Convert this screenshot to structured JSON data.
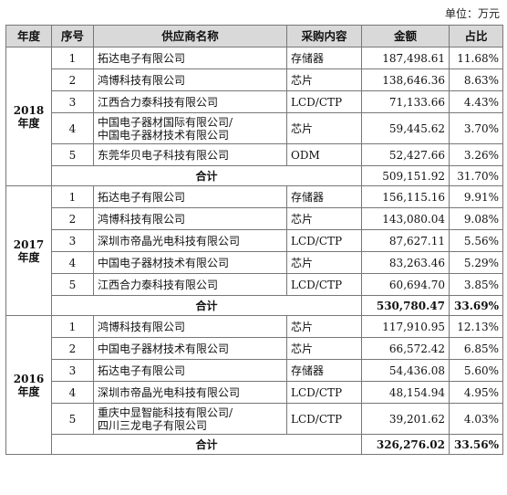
{
  "unit_label": "单位：万元",
  "headers": [
    "年度",
    "序号",
    "供应商名称",
    "采购内容",
    "金额",
    "占比"
  ],
  "subtotal_label": "合计",
  "years": [
    {
      "year": "2018",
      "year_suffix": "年度",
      "rows": [
        {
          "seq": "1",
          "name": [
            "拓达电子有限公司"
          ],
          "category": "存储器",
          "amount": "187,498.61",
          "share": "11.68%"
        },
        {
          "seq": "2",
          "name": [
            "鸿博科技有限公司"
          ],
          "category": "芯片",
          "amount": "138,646.36",
          "share": "8.63%"
        },
        {
          "seq": "3",
          "name": [
            "江西合力泰科技有限公司"
          ],
          "category": "LCD/CTP",
          "amount": "71,133.66",
          "share": "4.43%"
        },
        {
          "seq": "4",
          "name": [
            "中国电子器材国际有限公司/",
            "中国电子器材技术有限公司"
          ],
          "category": "芯片",
          "amount": "59,445.62",
          "share": "3.70%"
        },
        {
          "seq": "5",
          "name": [
            "东莞华贝电子科技有限公司"
          ],
          "category": "ODM",
          "amount": "52,427.66",
          "share": "3.26%"
        }
      ],
      "total_amount": "509,151.92",
      "total_share": "31.70%"
    },
    {
      "year": "2017",
      "year_suffix": "年度",
      "rows": [
        {
          "seq": "1",
          "name": [
            "拓达电子有限公司"
          ],
          "category": "存储器",
          "amount": "156,115.16",
          "share": "9.91%"
        },
        {
          "seq": "2",
          "name": [
            "鸿博科技有限公司"
          ],
          "category": "芯片",
          "amount": "143,080.04",
          "share": "9.08%"
        },
        {
          "seq": "3",
          "name": [
            "深圳市帝晶光电科技有限公司"
          ],
          "category": "LCD/CTP",
          "amount": "87,627.11",
          "share": "5.56%"
        },
        {
          "seq": "4",
          "name": [
            "中国电子器材技术有限公司"
          ],
          "category": "芯片",
          "amount": "83,263.46",
          "share": "5.29%"
        },
        {
          "seq": "5",
          "name": [
            "江西合力泰科技有限公司"
          ],
          "category": "LCD/CTP",
          "amount": "60,694.70",
          "share": "3.85%"
        }
      ],
      "total_amount": "530,780.47",
      "total_share": "33.69%"
    },
    {
      "year": "2016",
      "year_suffix": "年度",
      "rows": [
        {
          "seq": "1",
          "name": [
            "鸿博科技有限公司"
          ],
          "category": "芯片",
          "amount": "117,910.95",
          "share": "12.13%"
        },
        {
          "seq": "2",
          "name": [
            "中国电子器材技术有限公司"
          ],
          "category": "芯片",
          "amount": "66,572.42",
          "share": "6.85%"
        },
        {
          "seq": "3",
          "name": [
            "拓达电子有限公司"
          ],
          "category": "存储器",
          "amount": "54,436.08",
          "share": "5.60%"
        },
        {
          "seq": "4",
          "name": [
            "深圳市帝晶光电科技有限公司"
          ],
          "category": "LCD/CTP",
          "amount": "48,154.94",
          "share": "4.95%"
        },
        {
          "seq": "5",
          "name": [
            "重庆中显智能科技有限公司/",
            "四川三龙电子有限公司"
          ],
          "category": "LCD/CTP",
          "amount": "39,201.62",
          "share": "4.03%"
        }
      ],
      "total_amount": "326,276.02",
      "total_share": "33.56%"
    }
  ]
}
